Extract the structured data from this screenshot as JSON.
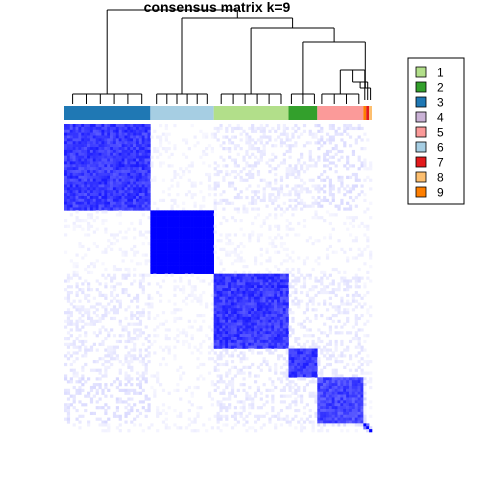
{
  "chart_data": {
    "type": "heatmap",
    "title": "consensus matrix k=9",
    "value_range": [
      0,
      1
    ],
    "color_low": "#ffffff",
    "color_high": "#0000ff",
    "legend_placement": "right",
    "legend": [
      {
        "label": "1",
        "color": "#b2df8a"
      },
      {
        "label": "2",
        "color": "#33a02c"
      },
      {
        "label": "3",
        "color": "#1f78b4"
      },
      {
        "label": "4",
        "color": "#cab2d6"
      },
      {
        "label": "5",
        "color": "#fb9a99"
      },
      {
        "label": "6",
        "color": "#a6cee3"
      },
      {
        "label": "7",
        "color": "#e31a1c"
      },
      {
        "label": "8",
        "color": "#fdbf6f"
      },
      {
        "label": "9",
        "color": "#ff7f00"
      }
    ],
    "column_order_classes": [
      "3",
      "6",
      "1",
      "2",
      "5",
      "9",
      "7",
      "8"
    ],
    "class_sizes": [
      30,
      22,
      26,
      10,
      16,
      1,
      1,
      1
    ],
    "class_colors": {
      "1": "#b2df8a",
      "2": "#33a02c",
      "3": "#1f78b4",
      "5": "#fb9a99",
      "6": "#a6cee3",
      "7": "#e31a1c",
      "8": "#fdbf6f",
      "9": "#ff7f00"
    },
    "mean_consensus": [
      [
        0.9,
        0.0,
        0.05,
        0.05,
        0.08,
        0.0,
        0.0,
        0.0
      ],
      [
        0.0,
        1.0,
        0.0,
        0.0,
        0.0,
        0.0,
        0.0,
        0.0
      ],
      [
        0.05,
        0.0,
        0.9,
        0.05,
        0.05,
        0.0,
        0.0,
        0.0
      ],
      [
        0.05,
        0.0,
        0.05,
        0.9,
        0.05,
        0.0,
        0.0,
        0.0
      ],
      [
        0.08,
        0.0,
        0.05,
        0.05,
        0.85,
        0.1,
        0.0,
        0.0
      ],
      [
        0.0,
        0.0,
        0.0,
        0.0,
        0.1,
        1.0,
        0.5,
        0.0
      ],
      [
        0.0,
        0.0,
        0.0,
        0.0,
        0.0,
        0.5,
        1.0,
        0.5
      ],
      [
        0.0,
        0.0,
        0.0,
        0.0,
        0.0,
        0.0,
        0.5,
        1.0
      ]
    ],
    "dendrogram_merges": [
      [
        "5",
        "9"
      ],
      [
        "5+9",
        "7"
      ],
      [
        "5+9+7",
        "8"
      ],
      [
        "2",
        "5+9+7+8"
      ],
      [
        "1",
        "2+5+9+7+8"
      ],
      [
        "6",
        "1+2+5+9+7+8"
      ],
      [
        "3",
        "6+1+2+5+9+7+8"
      ]
    ]
  }
}
